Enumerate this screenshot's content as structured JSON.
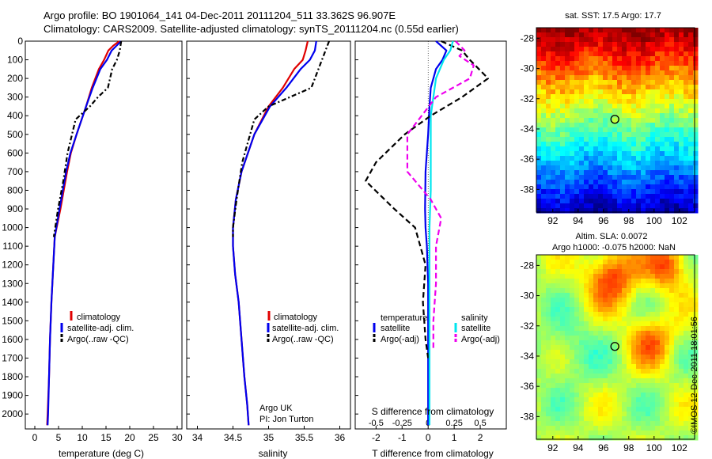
{
  "header": {
    "line1": "Argo profile: BO 1901064_141 04-Dec-2011 20111204_511 33.362S 96.907E",
    "line2": "Climatology: CARS2009. Satellite-adjusted climatology: synTS_20111204.nc (0.55d earlier)"
  },
  "stamp": "©IMOS 12-Dec-2011 18:01:56",
  "colors": {
    "climatology": "#e00000",
    "satellite": "#0000ee",
    "argo": "#000000",
    "sal_satellite": "#00e5ee",
    "sal_argo": "#ee00ee"
  },
  "chart_data": [
    {
      "type": "line",
      "name": "temperature",
      "xlabel": "temperature (deg C)",
      "xlim": [
        -2,
        31
      ],
      "ylim": [
        0,
        2080
      ],
      "y_reversed": true,
      "xticks": [
        0,
        5,
        10,
        15,
        20,
        25,
        30
      ],
      "yticks": [
        0,
        100,
        200,
        300,
        400,
        500,
        600,
        700,
        800,
        900,
        1000,
        1100,
        1200,
        1300,
        1400,
        1500,
        1600,
        1700,
        1800,
        1900,
        2000
      ],
      "legend_position": "bottom-center",
      "series": [
        {
          "name": "climatology",
          "color": "#e00000",
          "dash": "",
          "x": [
            17.8,
            16.5,
            15.5,
            14.6,
            13.5,
            12,
            10.8,
            8.8,
            7.6,
            6.8,
            5.4,
            4.2,
            3.9,
            3.5,
            3.2,
            3.0,
            2.7,
            2.6
          ],
          "y": [
            0,
            25,
            50,
            100,
            150,
            250,
            350,
            500,
            600,
            700,
            900,
            1050,
            1200,
            1400,
            1600,
            1800,
            2000,
            2060
          ]
        },
        {
          "name": "satellite-adj. clim.",
          "color": "#0000ee",
          "dash": "",
          "x": [
            18.2,
            17.2,
            16.2,
            15.2,
            13.8,
            12.2,
            10.8,
            8.8,
            7.5,
            6.6,
            5.2,
            4.2,
            3.9,
            3.5,
            3.2,
            3.0,
            2.8,
            2.7
          ],
          "y": [
            0,
            25,
            50,
            100,
            150,
            250,
            350,
            500,
            600,
            700,
            900,
            1050,
            1200,
            1400,
            1600,
            1800,
            2000,
            2060
          ]
        },
        {
          "name": "Argo(..raw -QC)",
          "color": "#000000",
          "dash": "6,3,2,3",
          "x": [
            18.2,
            17.9,
            17.3,
            16.3,
            15.4,
            13.3,
            11.6,
            8.6,
            6.9,
            6.0,
            4.9,
            4.0
          ],
          "y": [
            0,
            50,
            100,
            150,
            250,
            300,
            350,
            420,
            600,
            750,
            900,
            1050
          ]
        }
      ]
    },
    {
      "type": "line",
      "name": "salinity",
      "xlabel": "salinity",
      "xlim": [
        33.85,
        36.15
      ],
      "ylim": [
        0,
        2080
      ],
      "y_reversed": true,
      "xticks": [
        34,
        34.5,
        35,
        35.5,
        36
      ],
      "legend_position": "bottom-center",
      "annotation": [
        "Argo UK",
        "PI: Jon Turton"
      ],
      "series": [
        {
          "name": "climatology",
          "color": "#e00000",
          "dash": "",
          "x": [
            35.55,
            35.52,
            35.48,
            35.36,
            35.2,
            35.0,
            34.8,
            34.62,
            34.54,
            34.5,
            34.5,
            34.53,
            34.58,
            34.62,
            34.66,
            34.7,
            34.72
          ],
          "y": [
            0,
            50,
            100,
            150,
            250,
            350,
            500,
            700,
            850,
            1000,
            1100,
            1250,
            1400,
            1600,
            1800,
            1950,
            2060
          ]
        },
        {
          "name": "satellite-adj. clim.",
          "color": "#0000ee",
          "dash": "",
          "x": [
            35.67,
            35.65,
            35.58,
            35.45,
            35.25,
            35.02,
            34.8,
            34.62,
            34.54,
            34.5,
            34.5,
            34.53,
            34.58,
            34.62,
            34.66,
            34.7,
            34.72
          ],
          "y": [
            0,
            50,
            100,
            150,
            250,
            350,
            500,
            700,
            850,
            1000,
            1100,
            1250,
            1400,
            1600,
            1800,
            1950,
            2060
          ]
        },
        {
          "name": "Argo(..raw -QC)",
          "color": "#000000",
          "dash": "6,3,2,3",
          "x": [
            35.85,
            35.8,
            35.75,
            35.6,
            35.3,
            35.0,
            34.8,
            34.63,
            34.55,
            34.5,
            34.5
          ],
          "y": [
            0,
            50,
            100,
            250,
            300,
            350,
            420,
            650,
            850,
            1000,
            1050
          ]
        }
      ]
    },
    {
      "type": "line",
      "name": "difference",
      "xlabel": "T difference from climatology",
      "xlabel2": "S difference from climatology",
      "xlim": [
        -2.8,
        3.0
      ],
      "ylim": [
        0,
        2080
      ],
      "y_reversed": true,
      "xticks": [
        -2,
        -1,
        0,
        1,
        2
      ],
      "xticks_top": [
        -0.5,
        -0.25,
        0,
        0.25,
        0.5
      ],
      "legend_position": "bottom",
      "legend_headers": [
        "temperature",
        "salinity"
      ],
      "series": [
        {
          "name": "satellite",
          "color": "#0000ee",
          "dash": "",
          "x": [
            0.3,
            0.7,
            0.55,
            0.3,
            0.1,
            0.05,
            0.0,
            -0.1,
            -0.12,
            -0.1,
            -0.05,
            0.0,
            0.0,
            0.0,
            0.0
          ],
          "y": [
            0,
            50,
            100,
            150,
            250,
            350,
            500,
            700,
            900,
            1000,
            1100,
            1300,
            1600,
            1900,
            2060
          ]
        },
        {
          "name": "Argo(-adj)",
          "color": "#000000",
          "dash": "7,4",
          "x": [
            0.5,
            1.3,
            1.6,
            2.3,
            1.3,
            0.1,
            -0.9,
            -2.0,
            -2.4,
            -1.3,
            -0.5,
            -0.1,
            -0.2,
            -0.1,
            0.0
          ],
          "y": [
            0,
            50,
            100,
            200,
            300,
            400,
            500,
            650,
            750,
            900,
            1000,
            1200,
            1400,
            1600,
            1700
          ]
        },
        {
          "name": "satellite",
          "color": "#00e5ee",
          "dash": "",
          "x": [
            0.95,
            0.85,
            0.6,
            0.3,
            0.2,
            0.1,
            0.1,
            0.1,
            0.05,
            0.05,
            0.05,
            0.05
          ],
          "y": [
            0,
            50,
            100,
            200,
            300,
            400,
            600,
            800,
            1000,
            1300,
            1700,
            2060
          ]
        },
        {
          "name": "Argo(-adj)",
          "color": "#ee00ee",
          "dash": "7,4",
          "x": [
            1.05,
            1.4,
            1.2,
            1.75,
            1.6,
            0.3,
            -0.8,
            -0.8,
            0.1,
            0.5,
            0.3,
            0.3,
            0.2,
            0.2
          ],
          "y": [
            0,
            50,
            80,
            130,
            200,
            300,
            500,
            700,
            850,
            950,
            1100,
            1300,
            1500,
            1650
          ]
        }
      ]
    }
  ],
  "maps": {
    "sst_title": "sat. SST: 17.5 Argo: 17.7",
    "sla_title1": "Altim. SLA: 0.0072",
    "sla_title2": "Argo h1000: -0.075 h2000: NaN",
    "lon_ticks": [
      92,
      94,
      96,
      98,
      100,
      102
    ],
    "lat_ticks": [
      -28,
      -30,
      -32,
      -34,
      -36,
      -38
    ],
    "lon_range": [
      90.7,
      103.2
    ],
    "lat_range": [
      -27.3,
      -39.5
    ],
    "profile_location": [
      96.9,
      -33.36
    ]
  }
}
